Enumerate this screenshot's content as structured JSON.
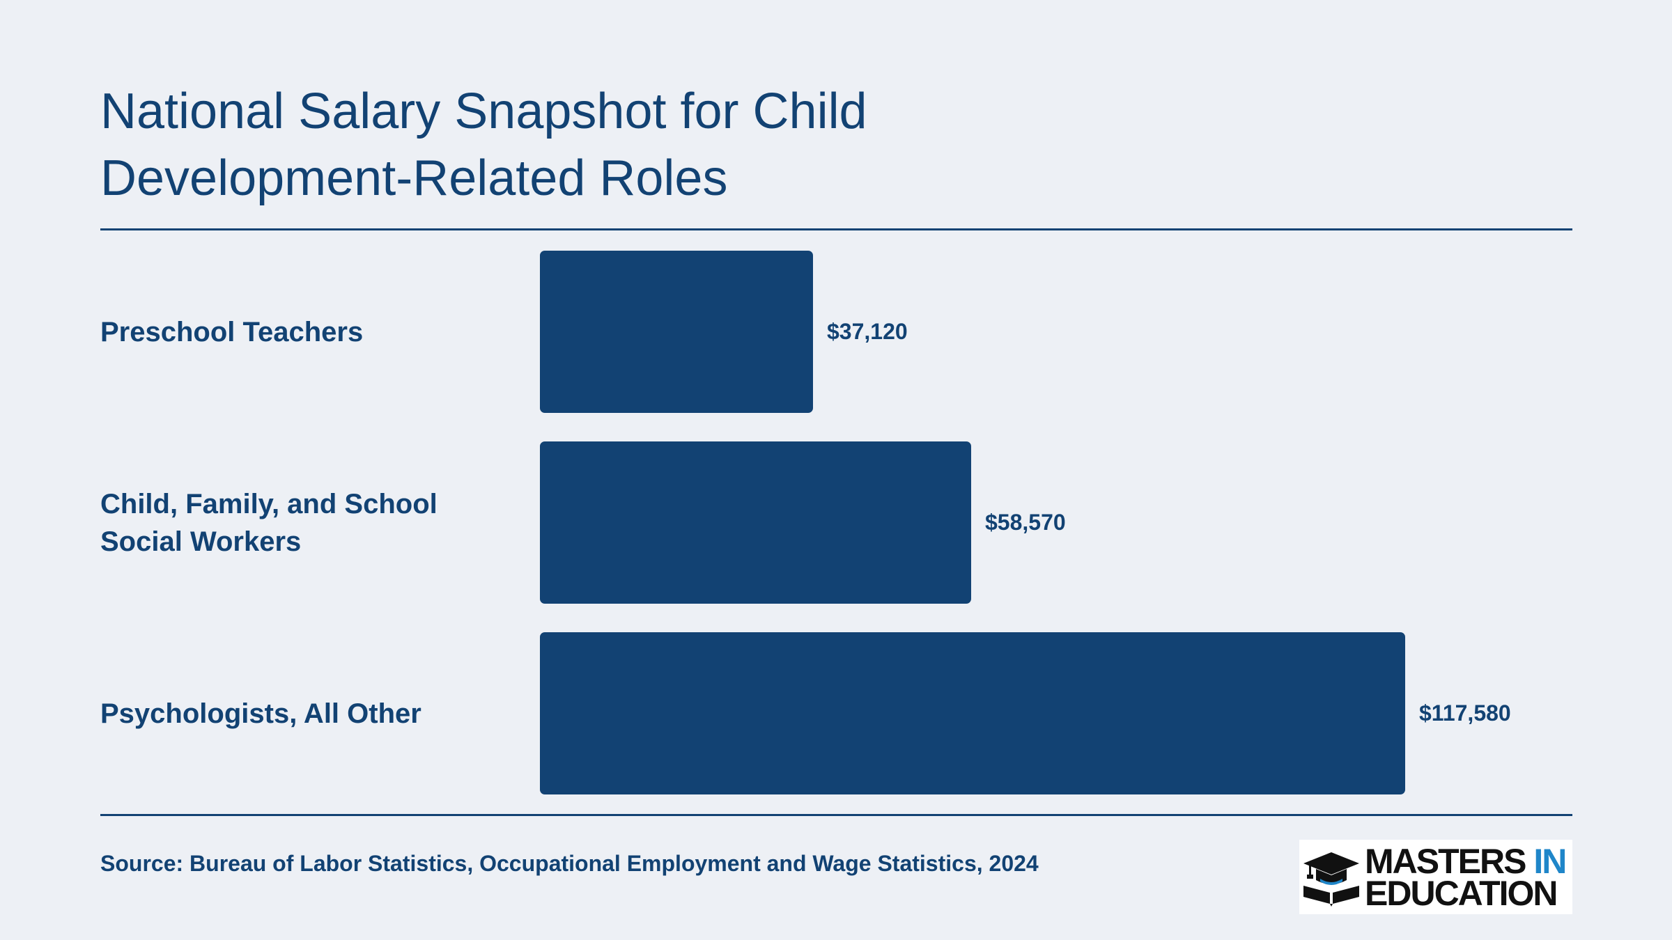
{
  "title": "National Salary Snapshot for Child Development-Related Roles",
  "source": "Source: Bureau of Labor Statistics, Occupational Employment and Wage Statistics, 2024",
  "logo": {
    "line1_part1": "MASTERS",
    "line1_part2": "IN",
    "line2": "EDUCATION",
    "icon": "graduation-cap-book-icon"
  },
  "colors": {
    "background": "#edf0f5",
    "bar": "#124273",
    "text": "#124273",
    "logo_accent": "#1f86c9"
  },
  "chart_data": {
    "type": "bar",
    "orientation": "horizontal",
    "title": "National Salary Snapshot for Child Development-Related Roles",
    "categories": [
      "Preschool Teachers",
      "Child, Family, and School Social Workers",
      "Psychologists, All Other"
    ],
    "values": [
      37120,
      58570,
      117580
    ],
    "value_labels": [
      "$37,120",
      "$58,570",
      "$117,580"
    ],
    "xlim": [
      0,
      117580
    ],
    "grid": false,
    "legend": "none"
  }
}
